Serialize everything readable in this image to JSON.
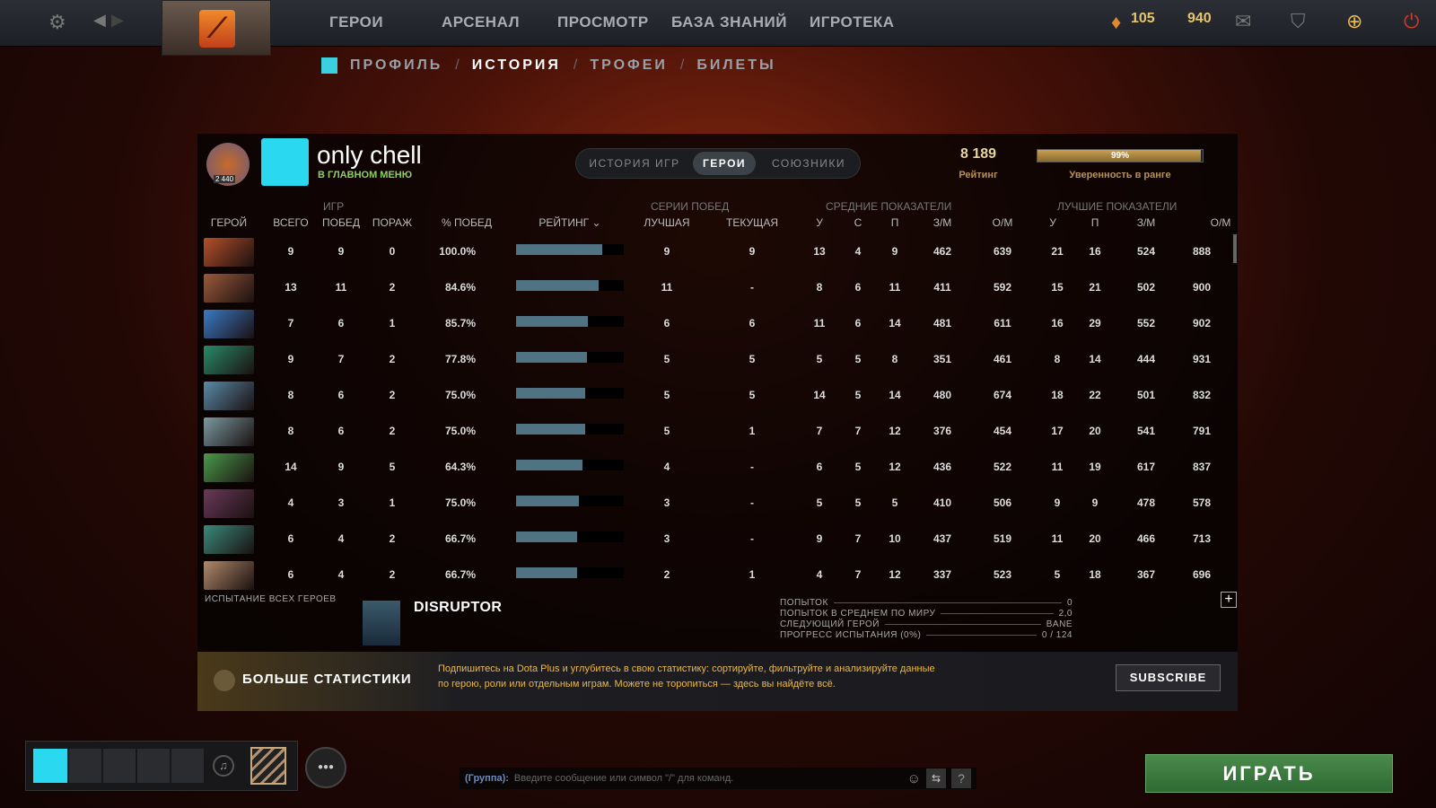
{
  "topbar": {
    "nav": [
      "ГЕРОИ",
      "АРСЕНАЛ",
      "ПРОСМОТР",
      "БАЗА ЗНАНИЙ",
      "ИГРОТЕКА"
    ],
    "shards": "105",
    "shards2": "940"
  },
  "subnav": {
    "items": [
      "ПРОФИЛЬ",
      "ИСТОРИЯ",
      "ТРОФЕИ",
      "БИЛЕТЫ"
    ],
    "active": "ИСТОРИЯ"
  },
  "profile": {
    "medal_number": "2 440",
    "name": "only chell",
    "status": "В ГЛАВНОМ МЕНЮ",
    "rating": "8 189",
    "rating_label": "Рейтинг",
    "confidence": "99%",
    "confidence_value": 99,
    "confidence_label": "Уверенность в ранге"
  },
  "tabs": [
    "ИСТОРИЯ ИГР",
    "ГЕРОИ",
    "СОЮЗНИКИ"
  ],
  "columns": {
    "games_group": "ИГР",
    "streak_group": "СЕРИИ ПОБЕД",
    "avg_group": "СРЕДНИЕ ПОКАЗАТЕЛИ",
    "best_group": "ЛУЧШИЕ ПОКАЗАТЕЛИ",
    "hero": "ГЕРОЙ",
    "total": "ВСЕГО",
    "wins": "ПОБЕД",
    "losses": "ПОРАЖ",
    "winrate": "% ПОБЕД",
    "rating": "РЕЙТИНГ ⌄",
    "best": "ЛУЧШАЯ",
    "current": "ТЕКУЩАЯ",
    "avg": [
      "У",
      "С",
      "П",
      "З/М",
      "О/М"
    ],
    "best_stats": [
      "У",
      "П",
      "З/М",
      "О/М"
    ]
  },
  "rows": [
    {
      "total": "9",
      "wins": "9",
      "losses": "0",
      "winrate": "100.0%",
      "rating": 0.8,
      "best": "9",
      "current": "9",
      "avg": [
        "13",
        "4",
        "9",
        "462",
        "639"
      ],
      "top": [
        "21",
        "16",
        "524",
        "888"
      ],
      "color": "#b4502a"
    },
    {
      "total": "13",
      "wins": "11",
      "losses": "2",
      "winrate": "84.6%",
      "rating": 0.77,
      "best": "11",
      "current": "-",
      "avg": [
        "8",
        "6",
        "11",
        "411",
        "592"
      ],
      "top": [
        "15",
        "21",
        "502",
        "900"
      ],
      "color": "#9a5a3a"
    },
    {
      "total": "7",
      "wins": "6",
      "losses": "1",
      "winrate": "85.7%",
      "rating": 0.67,
      "best": "6",
      "current": "6",
      "avg": [
        "11",
        "6",
        "14",
        "481",
        "611"
      ],
      "top": [
        "16",
        "29",
        "552",
        "902"
      ],
      "color": "#3a7ac8"
    },
    {
      "total": "9",
      "wins": "7",
      "losses": "2",
      "winrate": "77.8%",
      "rating": 0.66,
      "best": "5",
      "current": "5",
      "avg": [
        "5",
        "5",
        "8",
        "351",
        "461"
      ],
      "top": [
        "8",
        "14",
        "444",
        "931"
      ],
      "color": "#2a8a6a"
    },
    {
      "total": "8",
      "wins": "6",
      "losses": "2",
      "winrate": "75.0%",
      "rating": 0.64,
      "best": "5",
      "current": "5",
      "avg": [
        "14",
        "5",
        "14",
        "480",
        "674"
      ],
      "top": [
        "18",
        "22",
        "501",
        "832"
      ],
      "color": "#5a8aa8"
    },
    {
      "total": "8",
      "wins": "6",
      "losses": "2",
      "winrate": "75.0%",
      "rating": 0.64,
      "best": "5",
      "current": "1",
      "avg": [
        "7",
        "7",
        "12",
        "376",
        "454"
      ],
      "top": [
        "17",
        "20",
        "541",
        "791"
      ],
      "color": "#7a9aa0"
    },
    {
      "total": "14",
      "wins": "9",
      "losses": "5",
      "winrate": "64.3%",
      "rating": 0.62,
      "best": "4",
      "current": "-",
      "avg": [
        "6",
        "5",
        "12",
        "436",
        "522"
      ],
      "top": [
        "11",
        "19",
        "617",
        "837"
      ],
      "color": "#4a9a4a"
    },
    {
      "total": "4",
      "wins": "3",
      "losses": "1",
      "winrate": "75.0%",
      "rating": 0.58,
      "best": "3",
      "current": "-",
      "avg": [
        "5",
        "5",
        "5",
        "410",
        "506"
      ],
      "top": [
        "9",
        "9",
        "478",
        "578"
      ],
      "color": "#6a3a5a"
    },
    {
      "total": "6",
      "wins": "4",
      "losses": "2",
      "winrate": "66.7%",
      "rating": 0.57,
      "best": "3",
      "current": "-",
      "avg": [
        "9",
        "7",
        "10",
        "437",
        "519"
      ],
      "top": [
        "11",
        "20",
        "466",
        "713"
      ],
      "color": "#3a8a7a"
    },
    {
      "total": "6",
      "wins": "4",
      "losses": "2",
      "winrate": "66.7%",
      "rating": 0.57,
      "best": "2",
      "current": "1",
      "avg": [
        "4",
        "7",
        "12",
        "337",
        "523"
      ],
      "top": [
        "5",
        "18",
        "367",
        "696"
      ],
      "color": "#b08a6a"
    }
  ],
  "challenge": {
    "title": "ИСПЫТАНИЕ ВСЕХ ГЕРОЕВ",
    "hero": "DISRUPTOR",
    "stats": [
      {
        "label": "ПОПЫТОК",
        "value": "0"
      },
      {
        "label": "ПОПЫТОК В СРЕДНЕМ ПО МИРУ",
        "value": "2,0"
      },
      {
        "label": "СЛЕДУЮЩИЙ ГЕРОЙ",
        "value": "BANE"
      },
      {
        "label": "ПРОГРЕСС ИСПЫТАНИЯ (0%)",
        "value": "0 / 124"
      }
    ]
  },
  "promo": {
    "title": "БОЛЬШЕ СТАТИСТИКИ",
    "text1": "Подпишитесь на Dota Plus и углубитесь в свою статистику: сортируйте, фильтруйте и анализируйте данные",
    "text2": "по герою, роли или отдельным играм. Можете не торопиться — здесь вы найдёте всё.",
    "button": "SUBSCRIBE"
  },
  "chat": {
    "prefix": "(Группа):",
    "placeholder": "Введите сообщение или символ \"/\" для команд.",
    "help": "?"
  },
  "play": "ИГРАТЬ"
}
